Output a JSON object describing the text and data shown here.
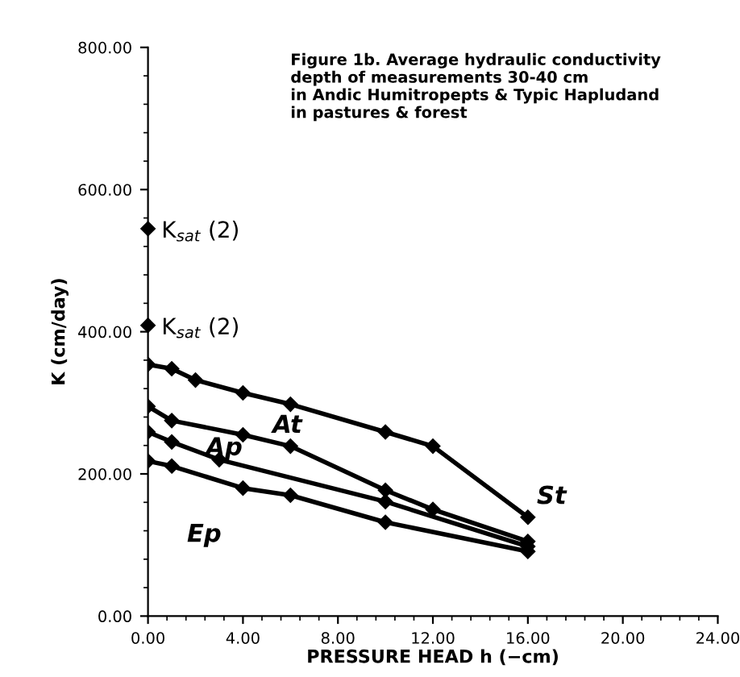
{
  "chart_data": {
    "type": "line",
    "title": "Figure 1b. Average hydraulic conductivity\ndepth of measurements 30-40 cm\nin Andic Humitropepts & Typic Hapludand\nin pastures & forest",
    "xlabel": "PRESSURE HEAD h (−cm)",
    "ylabel": "K (cm/day)",
    "xlim": [
      0,
      24
    ],
    "ylim": [
      0,
      800
    ],
    "xticks": [
      {
        "value": 0,
        "label": "0.00"
      },
      {
        "value": 4,
        "label": "4.00"
      },
      {
        "value": 8,
        "label": "8.00"
      },
      {
        "value": 12,
        "label": "12.00"
      },
      {
        "value": 16,
        "label": "16.00"
      },
      {
        "value": 20,
        "label": "20.00"
      },
      {
        "value": 24,
        "label": "24.00"
      }
    ],
    "yticks": [
      {
        "value": 0,
        "label": "0.00"
      },
      {
        "value": 200,
        "label": "200.00"
      },
      {
        "value": 400,
        "label": "400.00"
      },
      {
        "value": 600,
        "label": "600.00"
      },
      {
        "value": 800,
        "label": "800.00"
      }
    ],
    "series": [
      {
        "name": "St",
        "color": "#000000",
        "x": [
          0,
          1,
          2,
          4,
          6,
          10,
          12,
          16
        ],
        "values": [
          354,
          348,
          332,
          314,
          298,
          259,
          239,
          139
        ]
      },
      {
        "name": "At",
        "color": "#000000",
        "x": [
          0,
          1,
          4,
          6,
          10,
          12,
          16
        ],
        "values": [
          295,
          275,
          255,
          239,
          177,
          150,
          105
        ]
      },
      {
        "name": "Ap",
        "color": "#000000",
        "x": [
          0,
          1,
          3,
          10,
          16
        ],
        "values": [
          259,
          245,
          220,
          161,
          98
        ]
      },
      {
        "name": "Ep",
        "color": "#000000",
        "x": [
          0,
          1,
          4,
          6,
          10,
          16
        ],
        "values": [
          218,
          211,
          180,
          170,
          132,
          91
        ]
      }
    ],
    "annotations": [
      {
        "text": "K$_{sat}$ (2)",
        "x": 0,
        "y": 545
      },
      {
        "text": "K$_{sat}$ (2)",
        "x": 0,
        "y": 409
      }
    ],
    "marker": "diamond",
    "line_style": "solid",
    "grid": false,
    "legend": false
  }
}
